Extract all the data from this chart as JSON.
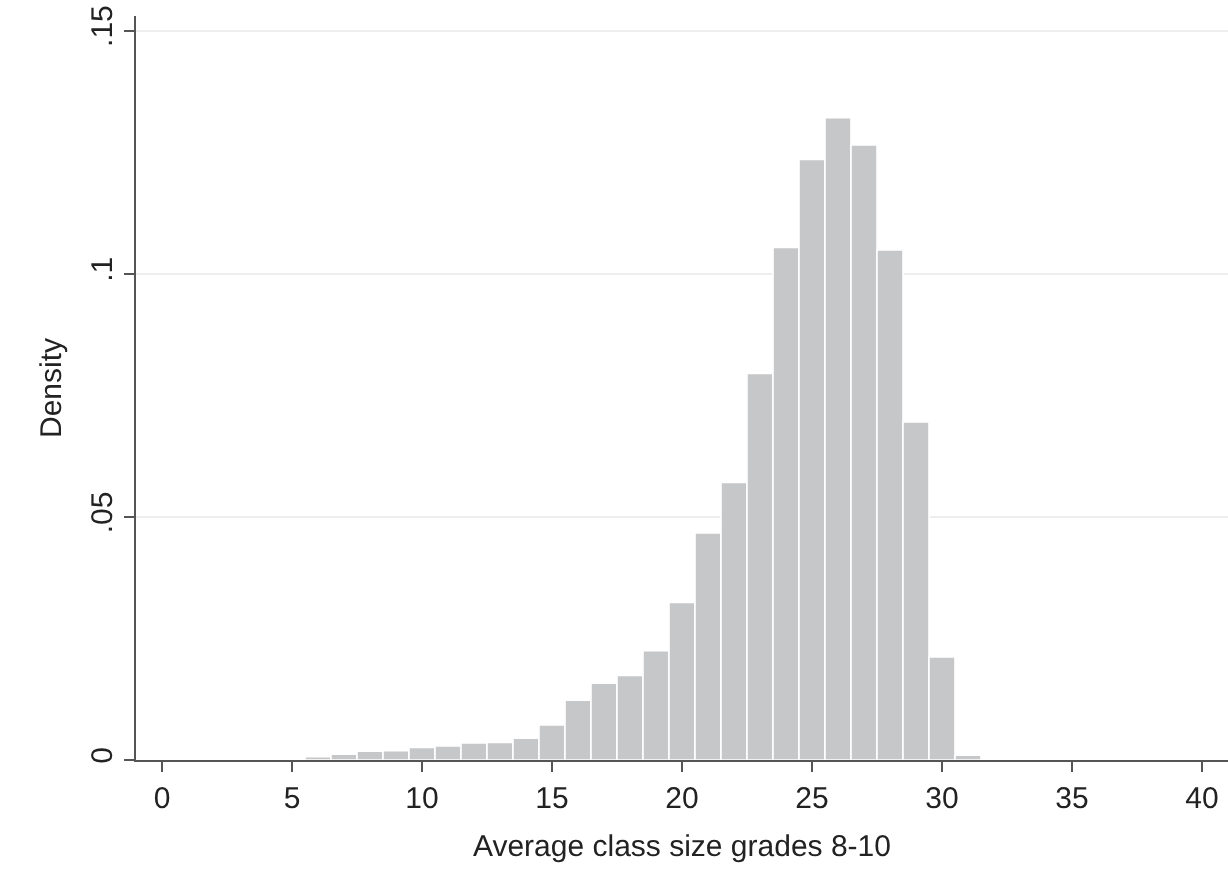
{
  "chart_data": {
    "type": "histogram",
    "xlabel": "Average class size grades 8-10",
    "ylabel": "Density",
    "bins": [
      0.5,
      1.5,
      2.5,
      3.5,
      4.5,
      5.5,
      6.5,
      7.5,
      8.5,
      9.5,
      10.5,
      11.5,
      12.5,
      13.5,
      14.5,
      15.5,
      16.5,
      17.5,
      18.5,
      19.5,
      20.5,
      21.5,
      22.5,
      23.5,
      24.5,
      25.5,
      26.5,
      27.5,
      28.5,
      29.5,
      30.5,
      31.5,
      32.5,
      33.5,
      34.5,
      35.5,
      36.5,
      37.5,
      38.5,
      39.5,
      40.5
    ],
    "values": [
      0.0001,
      0.0001,
      0.0001,
      0.0001,
      0.0001,
      0.0007,
      0.0012,
      0.0018,
      0.0019,
      0.0026,
      0.0029,
      0.0035,
      0.0036,
      0.0045,
      0.0072,
      0.0123,
      0.0158,
      0.0174,
      0.0225,
      0.0324,
      0.0467,
      0.0571,
      0.0795,
      0.1054,
      0.1235,
      0.1321,
      0.1265,
      0.1049,
      0.0695,
      0.0212,
      0.001,
      0.0001,
      0.0003,
      0.0003,
      0.0001,
      0.0001,
      0.0001,
      0.0001,
      0.0001,
      0.0001
    ],
    "color": "#c6c7c9",
    "xlim": [
      -1,
      41
    ],
    "xticks": [
      0,
      5,
      10,
      15,
      20,
      25,
      30,
      35,
      40
    ],
    "ylim": [
      0,
      0.153
    ],
    "yticks": [
      0,
      {
        "value": 0.05,
        "label": ".05"
      },
      {
        "value": 0.1,
        "label": ".1"
      },
      {
        "value": 0.15,
        "label": ".15"
      }
    ],
    "grid": "y"
  }
}
